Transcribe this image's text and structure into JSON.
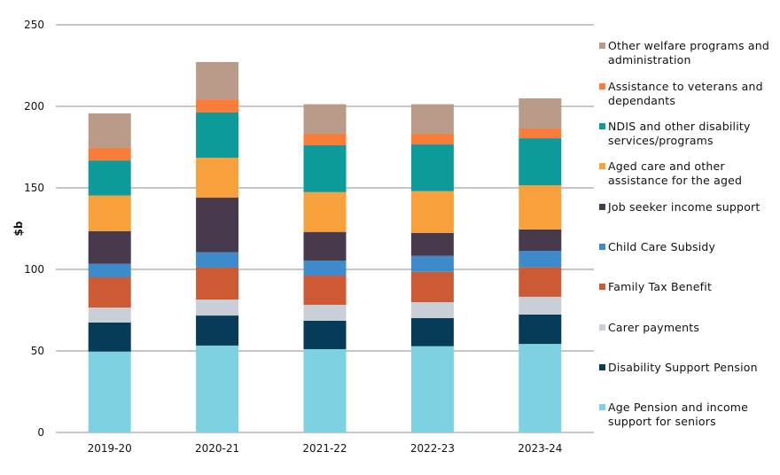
{
  "chart_data": {
    "type": "bar",
    "stacked": true,
    "title": "",
    "xlabel": "",
    "ylabel": "$b",
    "ylim": [
      0,
      250
    ],
    "yticks": [
      0,
      50,
      100,
      150,
      200,
      250
    ],
    "grid": true,
    "legend_position": "right",
    "categories": [
      "2019-20",
      "2020-21",
      "2021-22",
      "2022-23",
      "2023-24"
    ],
    "series": [
      {
        "name": "Age Pension and income support for seniors",
        "color": "#7dd1e1",
        "values": [
          49.6,
          53.3,
          51.1,
          52.9,
          54.3
        ]
      },
      {
        "name": "Disability Support Pension",
        "color": "#063b5a",
        "values": [
          17.8,
          18.4,
          17.4,
          17.2,
          18.0
        ]
      },
      {
        "name": "Carer payments",
        "color": "#c8cfd7",
        "values": [
          9.2,
          9.8,
          9.8,
          9.8,
          10.9
        ]
      },
      {
        "name": "Family Tax Benefit",
        "color": "#cb5a35",
        "values": [
          18.5,
          19.6,
          17.9,
          18.6,
          18.1
        ]
      },
      {
        "name": "Child Care Subsidy",
        "color": "#3d8bcb",
        "values": [
          8.3,
          9.4,
          9.2,
          9.8,
          10.1
        ]
      },
      {
        "name": "Job seeker income support",
        "color": "#473a4d",
        "values": [
          20.1,
          33.5,
          17.6,
          14.1,
          13.1
        ]
      },
      {
        "name": "Aged care and other assistance for the aged",
        "color": "#f8a03c",
        "values": [
          21.8,
          24.5,
          24.4,
          25.6,
          27.1
        ]
      },
      {
        "name": "NDIS and other disability services/programs",
        "color": "#0c9a9a",
        "values": [
          21.5,
          27.7,
          28.7,
          28.6,
          28.8
        ]
      },
      {
        "name": "Assistance to veterans and dependants",
        "color": "#f97c3a",
        "values": [
          7.7,
          8.1,
          7.1,
          6.6,
          6.0
        ]
      },
      {
        "name": "Other welfare programs and administration",
        "color": "#ba9a88",
        "values": [
          21.2,
          22.9,
          18.1,
          18.1,
          18.5
        ]
      }
    ],
    "legend_entries": [
      "Other welfare programs and\nadministration",
      "Assistance to veterans and\ndependants",
      "NDIS and other disability\nservices/programs",
      "Aged care and other\nassistance for the aged",
      "Job seeker income support",
      "Child Care Subsidy",
      "Family Tax Benefit",
      "Carer payments",
      "Disability Support Pension",
      "Age Pension and income\nsupport for seniors"
    ]
  },
  "colors": {
    "gridline": "#8c8c8c"
  }
}
